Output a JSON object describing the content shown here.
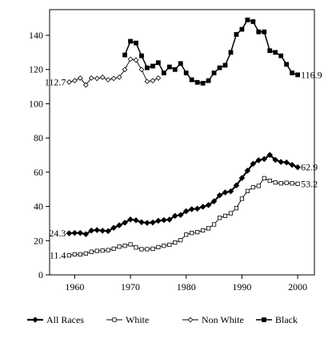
{
  "chart_data": {
    "type": "line",
    "title": "",
    "xlabel": "",
    "ylabel": "",
    "xlim": [
      1955.5,
      2003
    ],
    "ylim": [
      0,
      155
    ],
    "x_ticks": [
      1960,
      1970,
      1980,
      1990,
      2000
    ],
    "x_tick_labels": [
      "1960",
      "1970",
      "1980",
      "1990",
      "2000"
    ],
    "y_ticks": [
      0,
      20,
      40,
      60,
      80,
      100,
      120,
      140
    ],
    "y_tick_labels": [
      "0",
      "20",
      "40",
      "60",
      "80",
      "100",
      "120",
      "140"
    ],
    "grid": false,
    "legend_position": "bottom",
    "series": [
      {
        "name": "All Races",
        "marker": "filled-diamond",
        "x": [
          1959,
          1960,
          1961,
          1962,
          1963,
          1964,
          1965,
          1966,
          1967,
          1968,
          1969,
          1970,
          1971,
          1972,
          1973,
          1974,
          1975,
          1976,
          1977,
          1978,
          1979,
          1980,
          1981,
          1982,
          1983,
          1984,
          1985,
          1986,
          1987,
          1988,
          1989,
          1990,
          1991,
          1992,
          1993,
          1994,
          1995,
          1996,
          1997,
          1998,
          1999,
          2000
        ],
        "values": [
          24.3,
          24.5,
          24.5,
          23.8,
          25.9,
          26.2,
          25.8,
          25.6,
          27.5,
          29.0,
          30.5,
          32.4,
          31.9,
          30.8,
          30.4,
          30.6,
          31.6,
          32.0,
          32.3,
          34.5,
          35.0,
          37.2,
          38.4,
          38.7,
          39.8,
          40.8,
          43.0,
          46.5,
          48.2,
          48.8,
          52.3,
          56.6,
          60.9,
          64.9,
          67.0,
          67.7,
          70.1,
          67.2,
          66.0,
          65.7,
          64.3,
          62.9
        ]
      },
      {
        "name": "White",
        "marker": "open-square",
        "x": [
          1959,
          1960,
          1961,
          1962,
          1963,
          1964,
          1965,
          1966,
          1967,
          1968,
          1969,
          1970,
          1971,
          1972,
          1973,
          1974,
          1975,
          1976,
          1977,
          1978,
          1979,
          1980,
          1981,
          1982,
          1983,
          1984,
          1985,
          1986,
          1987,
          1988,
          1989,
          1990,
          1991,
          1992,
          1993,
          1994,
          1995,
          1996,
          1997,
          1998,
          1999,
          2000
        ],
        "values": [
          11.4,
          12.0,
          12.0,
          12.5,
          13.5,
          14.0,
          14.2,
          14.5,
          15.3,
          16.5,
          17.0,
          17.8,
          16.0,
          15.0,
          15.0,
          15.3,
          16.2,
          17.0,
          17.6,
          18.9,
          20.3,
          23.5,
          24.5,
          25.0,
          26.0,
          27.2,
          29.5,
          33.3,
          34.5,
          36.0,
          39.0,
          44.5,
          49.0,
          51.2,
          52.0,
          56.5,
          55.0,
          54.0,
          53.5,
          53.8,
          53.5,
          53.2
        ]
      },
      {
        "name": "Non White",
        "marker": "open-diamond",
        "x": [
          1959,
          1960,
          1961,
          1962,
          1963,
          1964,
          1965,
          1966,
          1967,
          1968,
          1969,
          1970,
          1971,
          1972,
          1973,
          1974,
          1975
        ],
        "values": [
          112.7,
          113.5,
          115.0,
          111.0,
          115.0,
          114.8,
          115.5,
          114.0,
          114.8,
          115.5,
          120.0,
          126.0,
          125.5,
          120.0,
          113.0,
          113.5,
          115.0
        ]
      },
      {
        "name": "Black",
        "marker": "filled-square",
        "x": [
          1969,
          1970,
          1971,
          1972,
          1973,
          1974,
          1975,
          1976,
          1977,
          1978,
          1979,
          1980,
          1981,
          1982,
          1983,
          1984,
          1985,
          1986,
          1987,
          1988,
          1989,
          1990,
          1991,
          1992,
          1993,
          1994,
          1995,
          1996,
          1997,
          1998,
          1999,
          2000
        ],
        "values": [
          128.5,
          136.5,
          135.5,
          128.0,
          121.0,
          122.0,
          124.0,
          118.0,
          121.5,
          120.0,
          123.5,
          118.0,
          114.0,
          112.5,
          112.0,
          113.5,
          118.0,
          121.0,
          122.5,
          130.0,
          140.5,
          143.5,
          149.0,
          148.0,
          142.0,
          142.0,
          131.0,
          130.0,
          128.0,
          123.0,
          118.0,
          116.9
        ]
      }
    ],
    "annotations": [
      {
        "text": "24.3",
        "x": 1959,
        "y": 24.3,
        "anchor": "left"
      },
      {
        "text": "11.4",
        "x": 1959,
        "y": 11.4,
        "anchor": "left"
      },
      {
        "text": "112.7",
        "x": 1959,
        "y": 112.7,
        "anchor": "left"
      },
      {
        "text": "62.9",
        "x": 2000,
        "y": 62.9,
        "anchor": "right"
      },
      {
        "text": "53.2",
        "x": 2000,
        "y": 53.2,
        "anchor": "right"
      },
      {
        "text": "116.9",
        "x": 2000,
        "y": 116.9,
        "anchor": "right"
      }
    ]
  }
}
